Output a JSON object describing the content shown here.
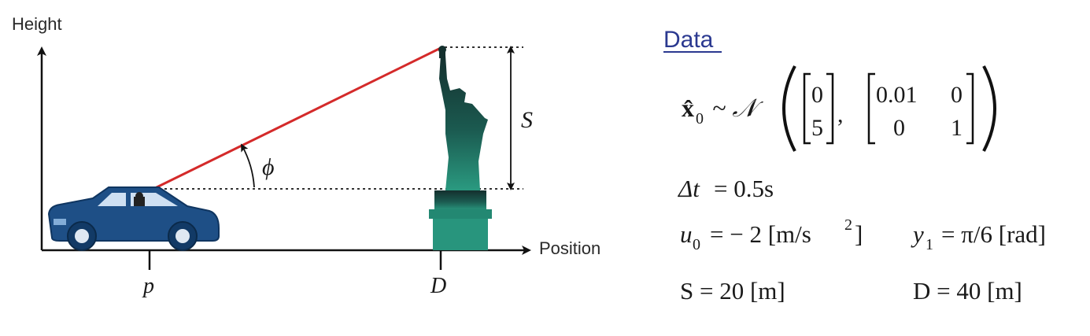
{
  "diagram": {
    "y_axis_label": "Height",
    "x_axis_label": "Position",
    "car_marker_label": "p",
    "statue_marker_label": "D",
    "angle_label": "ϕ",
    "height_label": "S",
    "colors": {
      "sight_line": "#d42a2a",
      "car_body": "#1e4f86",
      "statue": "#1f7a6a",
      "axis": "#111111"
    }
  },
  "data_panel": {
    "title": "Data",
    "prior": {
      "lhs": "x̂",
      "lhs_sub": "0",
      "dist": "~ 𝒩",
      "mean": [
        "0",
        "5"
      ],
      "cov": [
        [
          "0.01",
          "0"
        ],
        [
          "0",
          "1"
        ]
      ]
    },
    "dt": {
      "lhs": "Δt",
      "value": "= 0.5s"
    },
    "u0": {
      "lhs": "u",
      "sub": "0",
      "value": "= − 2 [m/s",
      "sup": "2",
      "close": "]"
    },
    "y1": {
      "lhs": "y",
      "sub": "1",
      "value": "= π/6 [rad]"
    },
    "S": {
      "text": "S = 20 [m]"
    },
    "D": {
      "text": "D = 40 [m]"
    }
  }
}
